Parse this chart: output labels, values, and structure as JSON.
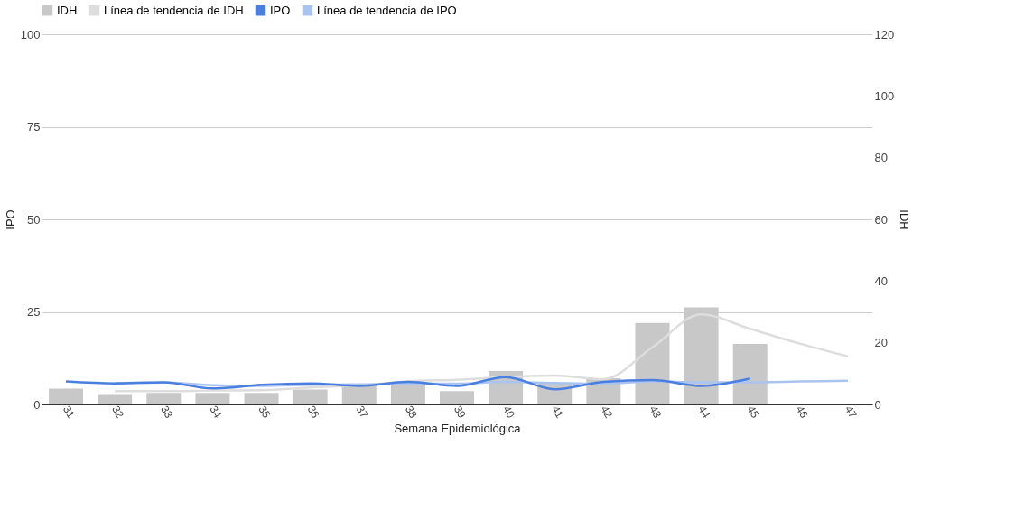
{
  "chart_data": {
    "type": "bar",
    "categories": [
      "31",
      "32",
      "33",
      "34",
      "35",
      "36",
      "37",
      "38",
      "39",
      "40",
      "41",
      "42",
      "43",
      "44",
      "45",
      "46",
      "47"
    ],
    "xlabel": "Semana Epidemiológica",
    "ylabel": "IPO",
    "y2label": "IDH",
    "ylim": [
      0,
      100
    ],
    "yticks": [
      0,
      25,
      50,
      75,
      100
    ],
    "y2lim": [
      0,
      120
    ],
    "y2ticks": [
      0,
      20,
      40,
      60,
      80,
      100,
      120
    ],
    "grid": "y",
    "legend": "top",
    "series": [
      {
        "name": "IDH",
        "axis": "y2",
        "color": "#c8c8c8",
        "values": [
          5.1,
          3.1,
          3.7,
          3.7,
          3.7,
          4.8,
          6.0,
          6.5,
          4.3,
          10.8,
          7.1,
          8.5,
          26.4,
          31.5,
          19.6,
          null,
          null
        ]
      },
      {
        "name": "Línea de tendencia de IDH",
        "type": "line",
        "axis": "y2",
        "color": "#dddddd",
        "values": [
          null,
          4.3,
          4.3,
          4.5,
          4.6,
          5.5,
          6.2,
          7.5,
          8.0,
          8.9,
          9.4,
          8.2,
          18.5,
          29.2,
          24.5,
          19.8,
          15.6
        ]
      },
      {
        "name": "IPO",
        "type": "line",
        "color": "#4a7fe0",
        "values": [
          6.2,
          5.7,
          6.0,
          4.3,
          5.3,
          5.7,
          5.0,
          6.1,
          5.0,
          7.4,
          4.1,
          6.1,
          6.6,
          5.0,
          7.0,
          null,
          null
        ]
      },
      {
        "name": "Línea de tendencia de IPO",
        "type": "line",
        "color": "#aac4f0",
        "values": [
          null,
          5.8,
          5.9,
          5.2,
          5.0,
          5.3,
          5.4,
          5.6,
          5.6,
          6.1,
          5.8,
          5.6,
          6.2,
          6.0,
          6.0,
          6.2,
          6.4
        ]
      }
    ]
  }
}
